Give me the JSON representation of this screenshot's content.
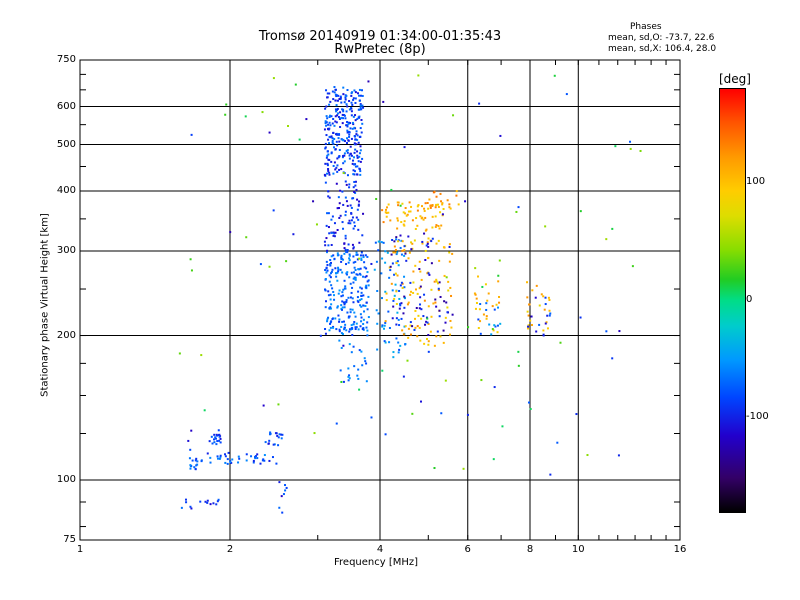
{
  "header": {
    "title_line1": "Tromsø 20140919 01:34:00-01:35:43",
    "title_line2": "RwPretec (8p)",
    "phases_title": "Phases",
    "phases_o": "mean, sd,O: -73.7, 22.6",
    "phases_x": "mean, sd,X: 106.4, 28.0"
  },
  "colorbar": {
    "unit": "[deg]",
    "ticks": [
      {
        "label": "100",
        "value": 100
      },
      {
        "label": "0",
        "value": 0
      },
      {
        "label": "-100",
        "value": -100
      }
    ],
    "range": [
      -180,
      180
    ]
  },
  "chart_data": {
    "type": "scatter",
    "xlabel": "Frequency [MHz]",
    "ylabel": "Stationary phase Virtual Height [km]",
    "xscale": "log",
    "yscale": "log",
    "xlim": [
      1,
      16
    ],
    "ylim": [
      75,
      750
    ],
    "xticks": [
      {
        "label": "1",
        "value": 1
      },
      {
        "label": "2",
        "value": 2
      },
      {
        "label": "4",
        "value": 4
      },
      {
        "label": "6",
        "value": 6
      },
      {
        "label": "8",
        "value": 8
      },
      {
        "label": "10",
        "value": 10
      },
      {
        "label": "16",
        "value": 16
      }
    ],
    "yticks": [
      {
        "label": "750",
        "value": 750
      },
      {
        "label": "600",
        "value": 600
      },
      {
        "label": "500",
        "value": 500
      },
      {
        "label": "400",
        "value": 400
      },
      {
        "label": "300",
        "value": 300
      },
      {
        "label": "200",
        "value": 200
      },
      {
        "label": "100",
        "value": 100
      },
      {
        "label": "75",
        "value": 75
      }
    ],
    "grid": true,
    "color_variable": "phase [deg]",
    "clusters": [
      {
        "f": [
          1.65,
          1.72
        ],
        "h": [
          104,
          112
        ],
        "phase": -75,
        "n": 14
      },
      {
        "f": [
          1.82,
          1.92
        ],
        "h": [
          118,
          127
        ],
        "phase": -85,
        "n": 20
      },
      {
        "f": [
          1.75,
          2.5
        ],
        "h": [
          108,
          114
        ],
        "phase": -80,
        "n": 40
      },
      {
        "f": [
          2.35,
          2.55
        ],
        "h": [
          118,
          126
        ],
        "phase": -85,
        "n": 18
      },
      {
        "f": [
          1.6,
          1.9
        ],
        "h": [
          87,
          92
        ],
        "phase": -90,
        "n": 14
      },
      {
        "f": [
          2.5,
          2.6
        ],
        "h": [
          85,
          103
        ],
        "phase": -95,
        "n": 8
      },
      {
        "f": [
          3.1,
          3.7
        ],
        "h": [
          430,
          660
        ],
        "phase": -85,
        "n": 280
      },
      {
        "f": [
          3.1,
          3.8
        ],
        "h": [
          205,
          300
        ],
        "phase": -70,
        "n": 230
      },
      {
        "f": [
          3.1,
          3.7
        ],
        "h": [
          300,
          420
        ],
        "phase": -95,
        "n": 90
      },
      {
        "f": [
          3.3,
          3.8
        ],
        "h": [
          160,
          210
        ],
        "phase": -70,
        "n": 35
      },
      {
        "f": [
          3.9,
          4.5
        ],
        "h": [
          180,
          320
        ],
        "phase": -60,
        "n": 70
      },
      {
        "f": [
          4.0,
          5.4
        ],
        "h": [
          330,
          380
        ],
        "phase": 110,
        "n": 70
      },
      {
        "f": [
          4.1,
          5.6
        ],
        "h": [
          190,
          320
        ],
        "phase": 105,
        "n": 110
      },
      {
        "f": [
          4.2,
          5.6
        ],
        "h": [
          200,
          330
        ],
        "phase": -110,
        "n": 70
      },
      {
        "f": [
          5.0,
          5.8
        ],
        "h": [
          360,
          400
        ],
        "phase": 120,
        "n": 16
      },
      {
        "f": [
          6.2,
          7.0
        ],
        "h": [
          200,
          270
        ],
        "phase": 100,
        "n": 22
      },
      {
        "f": [
          6.3,
          7.0
        ],
        "h": [
          200,
          240
        ],
        "phase": -60,
        "n": 12
      },
      {
        "f": [
          7.8,
          8.8
        ],
        "h": [
          200,
          260
        ],
        "phase": 100,
        "n": 22
      },
      {
        "f": [
          7.8,
          8.8
        ],
        "h": [
          200,
          240
        ],
        "phase": -90,
        "n": 12
      },
      {
        "f": [
          1.5,
          13.5
        ],
        "h": [
          100,
          700
        ],
        "phase": 30,
        "n": 60
      },
      {
        "f": [
          1.5,
          13.5
        ],
        "h": [
          100,
          700
        ],
        "phase": -100,
        "n": 50
      }
    ]
  }
}
